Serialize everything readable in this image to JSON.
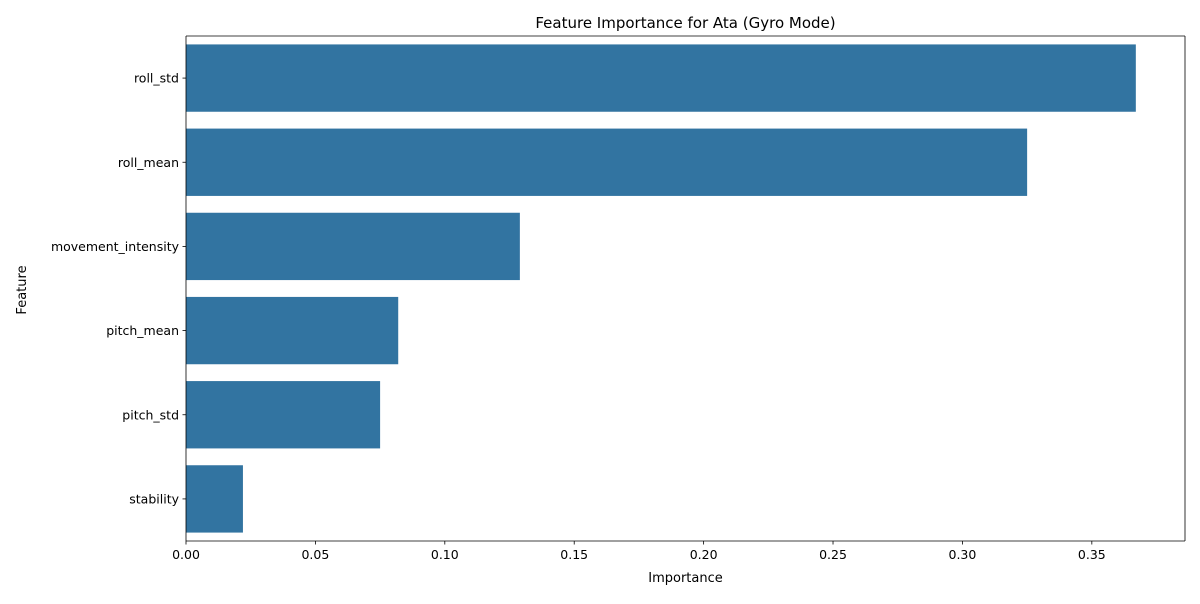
{
  "chart_data": {
    "type": "bar",
    "orientation": "horizontal",
    "title": "Feature Importance for Ata (Gyro Mode)",
    "xlabel": "Importance",
    "ylabel": "Feature",
    "categories": [
      "roll_std",
      "roll_mean",
      "movement_intensity",
      "pitch_mean",
      "pitch_std",
      "stability"
    ],
    "values": [
      0.367,
      0.325,
      0.129,
      0.082,
      0.075,
      0.022
    ],
    "xlim": [
      0,
      0.386
    ],
    "xticks": [
      0.0,
      0.05,
      0.1,
      0.15,
      0.2,
      0.25,
      0.3,
      0.35
    ],
    "xtick_labels": [
      "0.00",
      "0.05",
      "0.10",
      "0.15",
      "0.20",
      "0.25",
      "0.30",
      "0.35"
    ],
    "bar_color": "#3274a1",
    "grid": false,
    "legend": "none"
  }
}
